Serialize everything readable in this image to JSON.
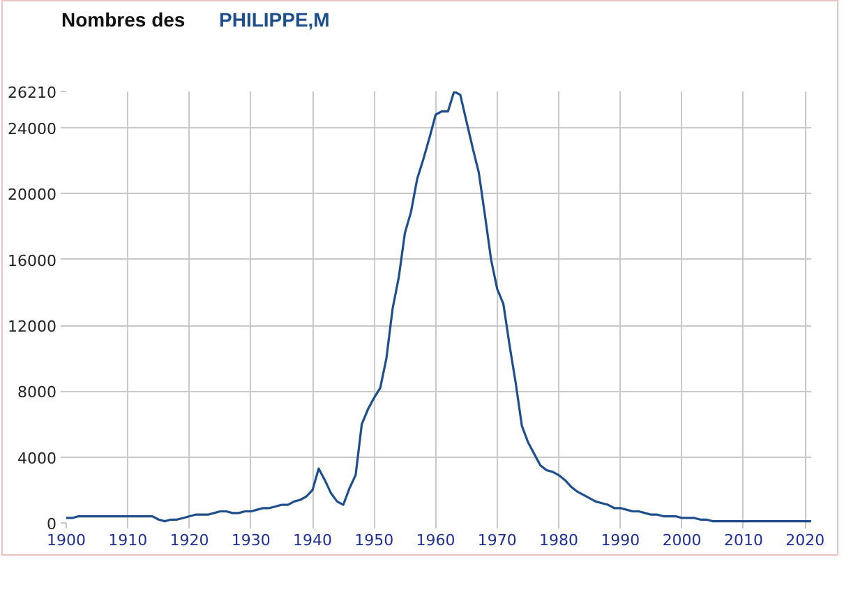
{
  "chart_data": {
    "type": "line",
    "title": "Nombres des",
    "x": [
      1900,
      1901,
      1902,
      1903,
      1904,
      1905,
      1906,
      1907,
      1908,
      1909,
      1910,
      1911,
      1912,
      1913,
      1914,
      1915,
      1916,
      1917,
      1918,
      1919,
      1920,
      1921,
      1922,
      1923,
      1924,
      1925,
      1926,
      1927,
      1928,
      1929,
      1930,
      1931,
      1932,
      1933,
      1934,
      1935,
      1936,
      1937,
      1938,
      1939,
      1940,
      1941,
      1942,
      1943,
      1944,
      1945,
      1946,
      1947,
      1948,
      1949,
      1950,
      1951,
      1952,
      1953,
      1954,
      1955,
      1956,
      1957,
      1958,
      1959,
      1960,
      1961,
      1962,
      1963,
      1964,
      1965,
      1966,
      1967,
      1968,
      1969,
      1970,
      1971,
      1972,
      1973,
      1974,
      1975,
      1976,
      1977,
      1978,
      1979,
      1980,
      1981,
      1982,
      1983,
      1984,
      1985,
      1986,
      1987,
      1988,
      1989,
      1990,
      1991,
      1992,
      1993,
      1994,
      1995,
      1996,
      1997,
      1998,
      1999,
      2000,
      2001,
      2002,
      2003,
      2004,
      2005,
      2006,
      2007,
      2008,
      2009,
      2010,
      2011,
      2012,
      2013,
      2014,
      2015,
      2016,
      2017,
      2018,
      2019,
      2020,
      2021
    ],
    "series": [
      {
        "name": "PHILIPPE,M",
        "color": "#1f4e8c",
        "values": [
          300,
          300,
          400,
          400,
          400,
          400,
          400,
          400,
          400,
          400,
          400,
          400,
          400,
          400,
          400,
          200,
          100,
          200,
          200,
          300,
          400,
          500,
          500,
          500,
          600,
          700,
          700,
          600,
          600,
          700,
          700,
          800,
          900,
          900,
          1000,
          1100,
          1100,
          1300,
          1400,
          1600,
          2000,
          3300,
          2600,
          1800,
          1300,
          1100,
          2100,
          2900,
          6000,
          6900,
          7600,
          8200,
          10000,
          13000,
          14900,
          17600,
          18900,
          20900,
          22100,
          23400,
          24800,
          25000,
          25000,
          26210,
          26000,
          24400,
          22800,
          21300,
          18700,
          16000,
          14200,
          13300,
          10800,
          8500,
          5900,
          4900,
          4200,
          3500,
          3200,
          3100,
          2900,
          2600,
          2200,
          1900,
          1700,
          1500,
          1300,
          1200,
          1100,
          900,
          900,
          800,
          700,
          700,
          600,
          500,
          500,
          400,
          400,
          400,
          300,
          300,
          300,
          200,
          200,
          100,
          100,
          100,
          100,
          100,
          100,
          100,
          100,
          100,
          100,
          100,
          100,
          100,
          100,
          100,
          100,
          100
        ]
      }
    ],
    "xlim": [
      1900,
      2021
    ],
    "ylim": [
      0,
      26210
    ],
    "xticks": [
      1900,
      1910,
      1920,
      1930,
      1940,
      1950,
      1960,
      1970,
      1980,
      1990,
      2000,
      2010,
      2020
    ],
    "yticks": [
      0,
      4000,
      8000,
      12000,
      16000,
      20000,
      24000,
      26210
    ],
    "grid": true
  }
}
